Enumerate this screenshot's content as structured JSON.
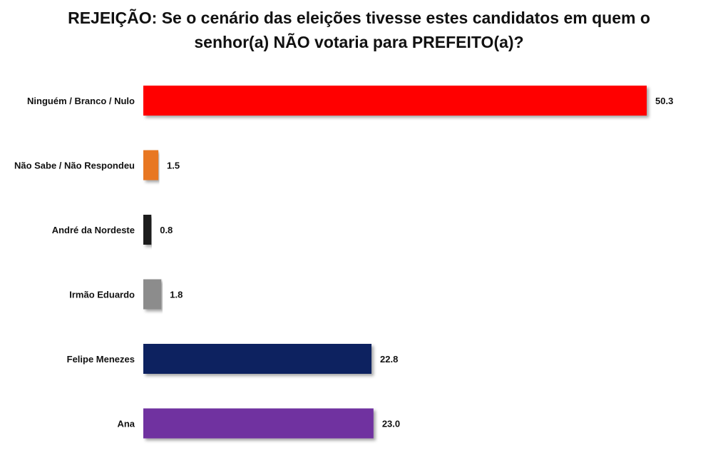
{
  "chart_data": {
    "type": "bar",
    "orientation": "horizontal",
    "title": "REJEIÇÃO: Se o cenário das eleições tivesse estes candidatos em quem o senhor(a) NÃO votaria para PREFEITO(a)?",
    "categories": [
      "Ninguém / Branco / Nulo",
      "Não Sabe / Não Respondeu",
      "André da Nordeste",
      "Irmão Eduardo",
      "Felipe Menezes",
      "Ana"
    ],
    "values": [
      50.3,
      1.5,
      0.8,
      1.8,
      22.8,
      23.0
    ],
    "value_labels": [
      "50.3",
      "1.5",
      "0.8",
      "1.8",
      "22.8",
      "23.0"
    ],
    "colors": [
      "#ff0000",
      "#e87722",
      "#1a1a1a",
      "#8c8c8c",
      "#0d2060",
      "#7030a0"
    ],
    "xlim": [
      0,
      50.3
    ],
    "grid": false,
    "legend": "none"
  }
}
